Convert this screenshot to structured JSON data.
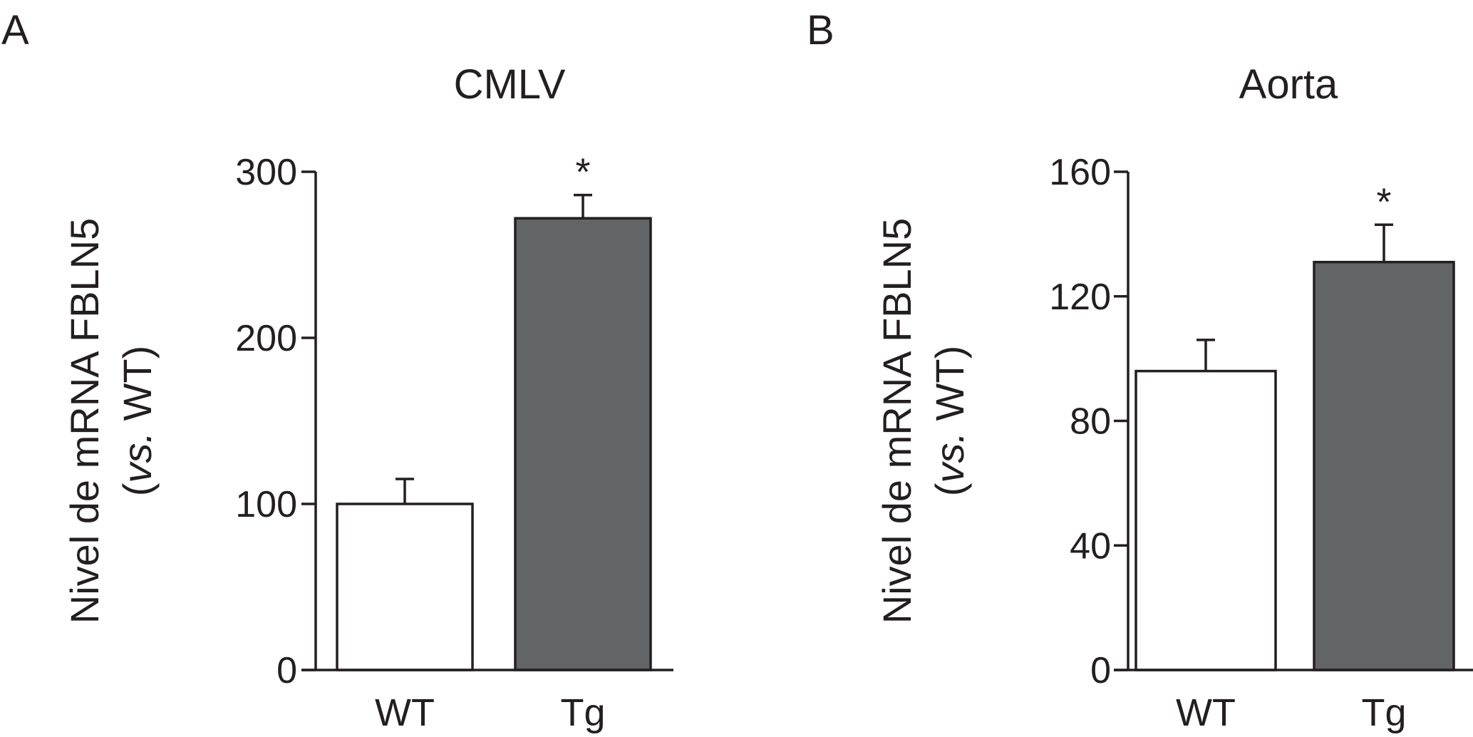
{
  "chart_data": [
    {
      "type": "bar",
      "panel": "A",
      "title": "CMLV",
      "ylabel_line1": "Nivel de mRNA FBLN5",
      "ylabel_line2_prefix": "(",
      "ylabel_line2_italic": "vs.",
      "ylabel_line2_suffix": " WT)",
      "categories": [
        "WT",
        "Tg"
      ],
      "values": [
        100,
        272
      ],
      "errors": [
        15,
        14
      ],
      "significance": [
        "",
        "*"
      ],
      "yticks": [
        0,
        100,
        200,
        300
      ],
      "ylim": [
        0,
        300
      ],
      "bar_colors": [
        "#ffffff",
        "#636466"
      ],
      "grid": false
    },
    {
      "type": "bar",
      "panel": "B",
      "title": "Aorta",
      "ylabel_line1": "Nivel de mRNA FBLN5",
      "ylabel_line2_prefix": "(",
      "ylabel_line2_italic": "vs.",
      "ylabel_line2_suffix": " WT)",
      "categories": [
        "WT",
        "Tg"
      ],
      "values": [
        96,
        131
      ],
      "errors": [
        10,
        12
      ],
      "significance": [
        "",
        "*"
      ],
      "yticks": [
        0,
        40,
        80,
        120,
        160
      ],
      "ylim": [
        0,
        160
      ],
      "bar_colors": [
        "#ffffff",
        "#636466"
      ],
      "grid": false
    }
  ]
}
